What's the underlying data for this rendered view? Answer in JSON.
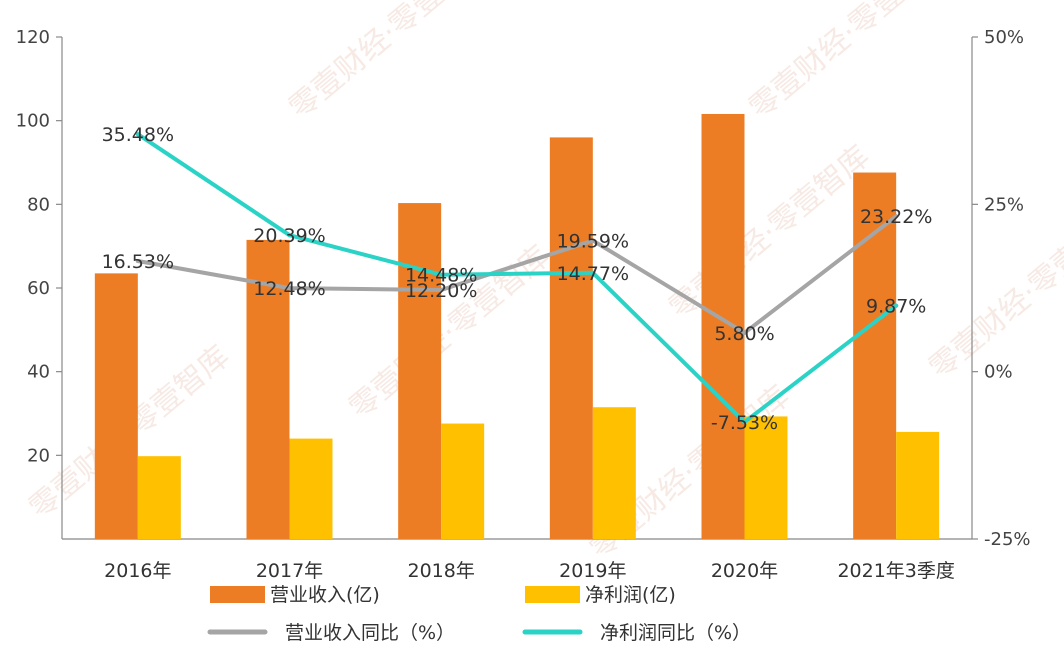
{
  "chart_data": {
    "type": "bar",
    "categories": [
      "2016年",
      "2017年",
      "2018年",
      "2019年",
      "2020年",
      "2021年3季度"
    ],
    "series": [
      {
        "name": "营业收入(亿)",
        "kind": "bar",
        "axis": "left",
        "color": "#ED7D24",
        "values": [
          63.5,
          71.5,
          80.3,
          96.0,
          101.6,
          87.6
        ]
      },
      {
        "name": "净利润(亿)",
        "kind": "bar",
        "axis": "left",
        "color": "#FFC000",
        "values": [
          19.8,
          24.0,
          27.6,
          31.5,
          29.3,
          25.6
        ]
      },
      {
        "name": "营业收入同比（%）",
        "kind": "line",
        "axis": "right",
        "color": "#A5A5A5",
        "values": [
          16.53,
          12.48,
          12.2,
          19.59,
          5.8,
          23.22
        ],
        "labels": [
          "16.53%",
          "12.48%",
          "12.20%",
          "19.59%",
          "5.80%",
          "23.22%"
        ]
      },
      {
        "name": "净利润同比（%）",
        "kind": "line",
        "axis": "right",
        "color": "#2BD3C6",
        "values": [
          35.48,
          20.39,
          14.48,
          14.77,
          -7.53,
          9.87
        ],
        "labels": [
          "35.48%",
          "20.39%",
          "14.48%",
          "14.77%",
          "-7.53%",
          "9.87%"
        ]
      }
    ],
    "y_left": {
      "min": 0,
      "max": 120,
      "ticks": [
        "20",
        "40",
        "60",
        "80",
        "100",
        "120"
      ]
    },
    "y_right": {
      "min": -25,
      "max": 50,
      "ticks": [
        "-25%",
        "0%",
        "25%",
        "50%"
      ]
    },
    "grid": false,
    "legend_position": "bottom",
    "watermark": "零壹财经·零壹智库"
  }
}
